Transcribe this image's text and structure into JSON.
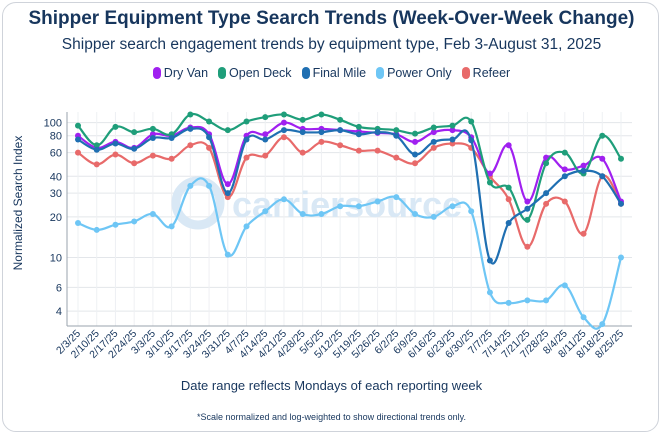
{
  "chart_data": {
    "type": "line",
    "title": "Shipper Equipment Type Search Trends (Week-Over-Week Change)",
    "subtitle": "Shipper search engagement trends by equipment type, Feb 3-August 31, 2025",
    "xlabel": "Date range reflects Mondays of each reporting week",
    "ylabel": "Normalized Search Index",
    "footnote": "*Scale normalized and log-weighted to show directional trends only.",
    "watermark": "carriersource",
    "yscale": "log",
    "ylim": [
      3.1,
      120
    ],
    "yticks": [
      4,
      6,
      10,
      20,
      30,
      40,
      60,
      80,
      100
    ],
    "categories": [
      "2/3/25",
      "2/10/25",
      "2/17/25",
      "2/24/25",
      "3/3/25",
      "3/10/25",
      "3/17/25",
      "3/24/25",
      "3/31/25",
      "4/7/25",
      "4/14/25",
      "4/21/25",
      "4/28/25",
      "5/5/25",
      "5/12/25",
      "5/19/25",
      "5/26/25",
      "6/2/25",
      "6/9/25",
      "6/16/25",
      "6/23/25",
      "6/30/25",
      "7/7/25",
      "7/14/25",
      "7/21/25",
      "7/28/25",
      "8/4/25",
      "8/11/25",
      "8/18/25",
      "8/25/25"
    ],
    "series": [
      {
        "name": "Dry Van",
        "color": "#a020f0",
        "values": [
          80,
          65,
          72,
          65,
          82,
          80,
          92,
          82,
          35,
          80,
          82,
          100,
          90,
          90,
          88,
          86,
          84,
          82,
          72,
          85,
          88,
          78,
          42,
          68,
          26,
          55,
          45,
          48,
          54,
          26
        ]
      },
      {
        "name": "Open Deck",
        "color": "#1f9e7a",
        "values": [
          95,
          68,
          93,
          85,
          90,
          82,
          115,
          102,
          88,
          102,
          110,
          115,
          105,
          115,
          105,
          93,
          90,
          88,
          83,
          92,
          95,
          102,
          36,
          33,
          19,
          50,
          60,
          42,
          80,
          54
        ]
      },
      {
        "name": "Final Mile",
        "color": "#1f6fb2",
        "values": [
          75,
          63,
          70,
          64,
          77,
          77,
          90,
          78,
          30,
          75,
          75,
          88,
          85,
          85,
          88,
          82,
          85,
          80,
          58,
          72,
          75,
          74,
          9.5,
          18,
          23,
          30,
          40,
          44,
          40,
          25
        ]
      },
      {
        "name": "Power Only",
        "color": "#6ec6f5",
        "values": [
          18,
          16,
          17.5,
          18.5,
          21,
          17,
          34,
          34,
          10.5,
          17,
          22,
          27,
          21,
          21,
          24,
          24,
          26,
          28,
          21,
          20,
          24,
          22,
          5.5,
          4.6,
          4.8,
          4.8,
          6.2,
          3.6,
          3.2,
          10
        ]
      },
      {
        "name": "Refeer",
        "color": "#e86a6a",
        "values": [
          60,
          49,
          58,
          50,
          57,
          54,
          68,
          65,
          28,
          55,
          57,
          78,
          60,
          72,
          68,
          62,
          62,
          55,
          50,
          65,
          70,
          65,
          40,
          27,
          12,
          25,
          26,
          15,
          40,
          25
        ]
      }
    ]
  }
}
